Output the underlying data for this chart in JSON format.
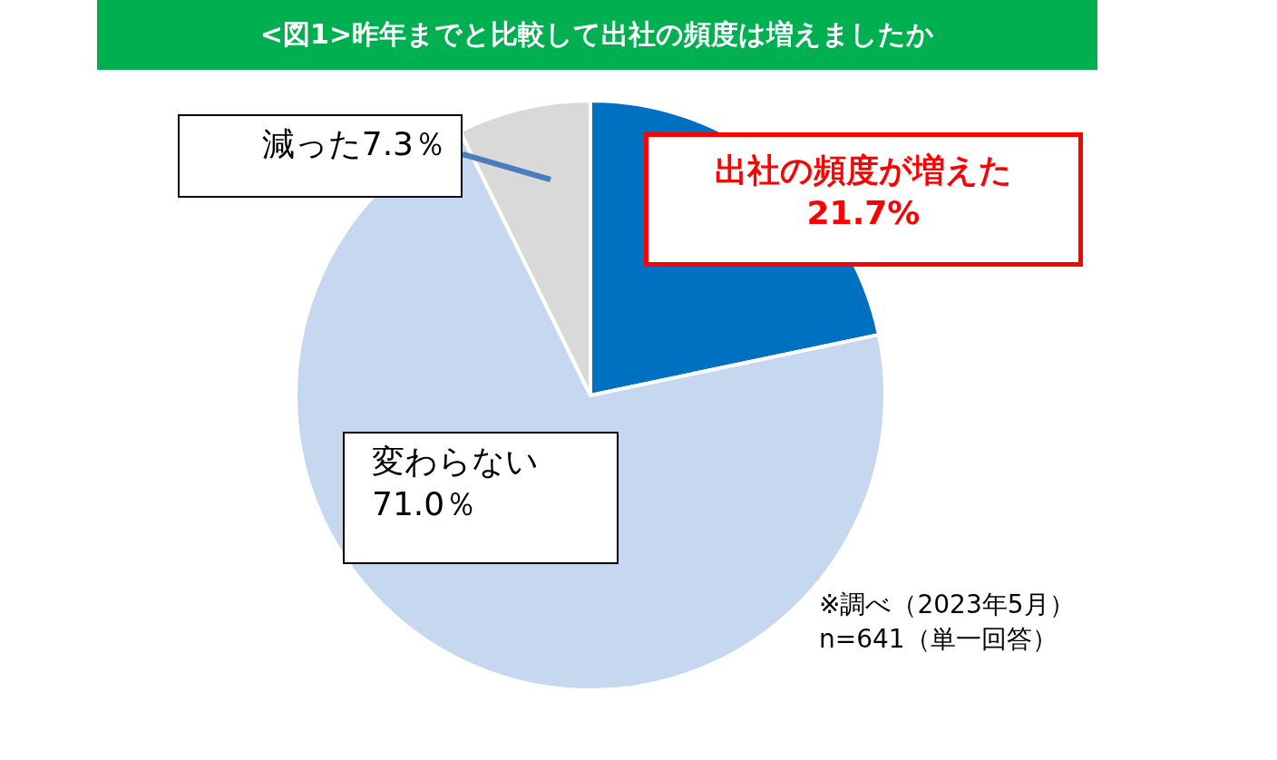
{
  "chart_data": {
    "type": "pie",
    "title": "<図1>昨年までと比較して出社の頻度は増えましたか",
    "categories": [
      "出社の頻度が増えた",
      "変わらない",
      "減った"
    ],
    "values": [
      21.7,
      71.0,
      7.3
    ],
    "value_labels": [
      "21.7%",
      "71.0％",
      "7.3％"
    ],
    "colors": [
      "#0070c0",
      "#c5d8ef",
      "#d9d9d9"
    ],
    "annotations": [
      "※調べ（2023年5月）",
      "n=641（単一回答）"
    ]
  }
}
